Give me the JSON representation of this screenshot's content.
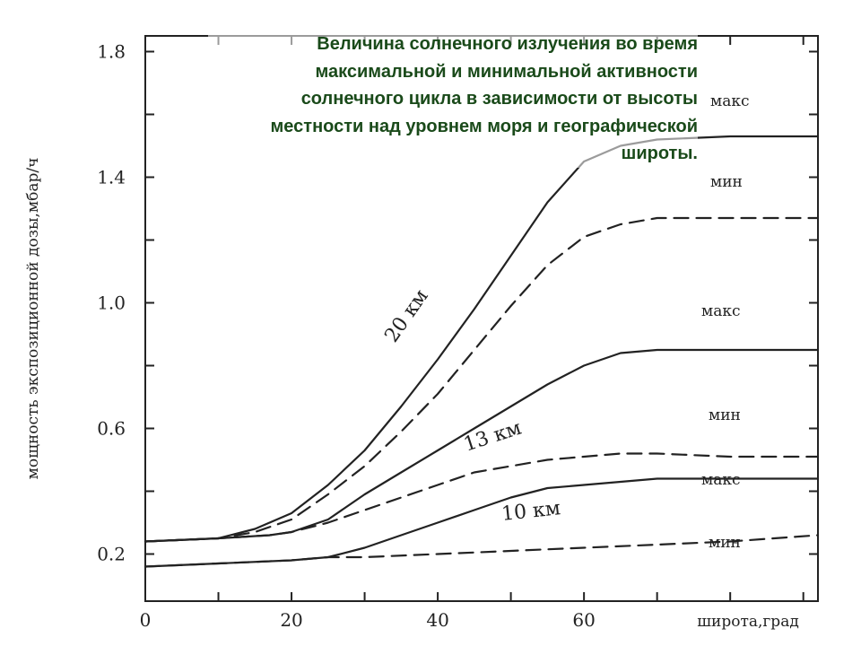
{
  "chart_data": {
    "type": "line",
    "title": "Величина солнечного излучения во время максимальной и минимальной активности солнечного цикла в зависимости от высоты местности над уровнем моря и географической широты.",
    "xlabel": "широта,град",
    "ylabel": "мощность экспозиционной дозы,мбар/ч",
    "xlim": [
      0,
      92
    ],
    "ylim": [
      0.05,
      1.85
    ],
    "x_ticks": [
      "0",
      "20",
      "40",
      "60"
    ],
    "y_ticks": [
      "0.2",
      "0.6",
      "1.0",
      "1.4",
      "1.8"
    ],
    "grid": false,
    "series": [
      {
        "name": "20 км макс",
        "altitude": "20 км",
        "label": "макс",
        "style": "solid",
        "x": [
          0,
          10,
          15,
          20,
          25,
          30,
          35,
          40,
          45,
          50,
          55,
          60,
          65,
          70,
          80,
          92
        ],
        "y": [
          0.24,
          0.25,
          0.28,
          0.33,
          0.42,
          0.53,
          0.67,
          0.82,
          0.98,
          1.15,
          1.32,
          1.45,
          1.5,
          1.52,
          1.53,
          1.53
        ]
      },
      {
        "name": "20 км мин",
        "altitude": "20 км",
        "label": "мин",
        "style": "dashed",
        "x": [
          0,
          10,
          15,
          20,
          25,
          30,
          35,
          40,
          45,
          50,
          55,
          60,
          65,
          70,
          80,
          92
        ],
        "y": [
          0.24,
          0.25,
          0.27,
          0.31,
          0.39,
          0.48,
          0.59,
          0.71,
          0.85,
          0.99,
          1.12,
          1.21,
          1.25,
          1.27,
          1.27,
          1.27
        ]
      },
      {
        "name": "13 км макс",
        "altitude": "13 км",
        "label": "макс",
        "style": "solid",
        "x": [
          0,
          10,
          17,
          20,
          25,
          30,
          35,
          40,
          45,
          50,
          55,
          60,
          65,
          70,
          80,
          92
        ],
        "y": [
          0.24,
          0.25,
          0.26,
          0.27,
          0.31,
          0.39,
          0.46,
          0.53,
          0.6,
          0.67,
          0.74,
          0.8,
          0.84,
          0.85,
          0.85,
          0.85
        ]
      },
      {
        "name": "13 км мин",
        "altitude": "13 км",
        "label": "мин",
        "style": "dashed",
        "x": [
          0,
          10,
          17,
          20,
          25,
          30,
          35,
          40,
          45,
          50,
          55,
          60,
          65,
          70,
          80,
          92
        ],
        "y": [
          0.24,
          0.25,
          0.26,
          0.27,
          0.3,
          0.34,
          0.38,
          0.42,
          0.46,
          0.48,
          0.5,
          0.51,
          0.52,
          0.52,
          0.51,
          0.51
        ]
      },
      {
        "name": "10 км макс",
        "altitude": "10 км",
        "label": "макс",
        "style": "solid",
        "x": [
          0,
          10,
          20,
          25,
          30,
          35,
          40,
          45,
          50,
          55,
          60,
          65,
          70,
          80,
          92
        ],
        "y": [
          0.16,
          0.17,
          0.18,
          0.19,
          0.22,
          0.26,
          0.3,
          0.34,
          0.38,
          0.41,
          0.42,
          0.43,
          0.44,
          0.44,
          0.44
        ]
      },
      {
        "name": "10 км мин",
        "altitude": "10 км",
        "label": "мин",
        "style": "dashed",
        "x": [
          0,
          10,
          20,
          25,
          30,
          40,
          50,
          60,
          70,
          80,
          92
        ],
        "y": [
          0.16,
          0.17,
          0.18,
          0.19,
          0.19,
          0.2,
          0.21,
          0.22,
          0.23,
          0.24,
          0.26
        ]
      }
    ],
    "curve_labels": [
      "макс",
      "мин",
      "макс",
      "мин",
      "макс",
      "мин"
    ],
    "altitude_labels": [
      "20 км",
      "13 км",
      "10 км"
    ]
  }
}
